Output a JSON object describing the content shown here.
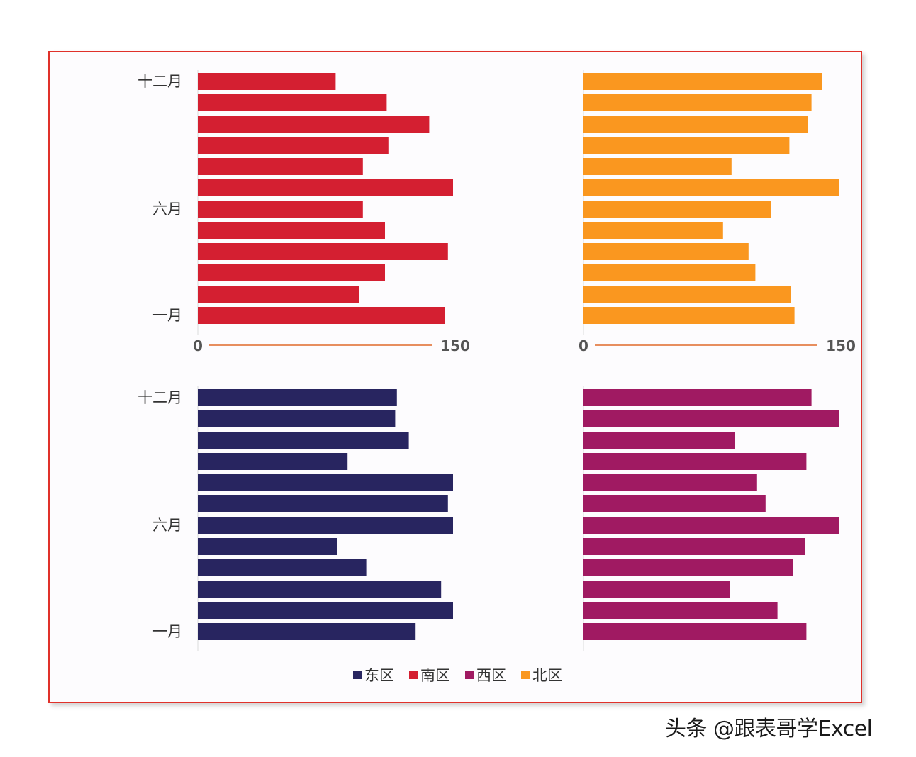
{
  "chart_data": {
    "type": "bar",
    "orientation": "horizontal",
    "layout": "2x2 small multiples",
    "categories": [
      "一月",
      "",
      "",
      "",
      "",
      "六月",
      "",
      "",
      "",
      "",
      "",
      "十二月"
    ],
    "xlim": [
      0,
      150
    ],
    "x_tick_labels": [
      "0",
      "150"
    ],
    "legend": [
      "东区",
      "南区",
      "西区",
      "北区"
    ],
    "legend_position": "bottom",
    "series": [
      {
        "name": "南区",
        "color": "#d41f31",
        "panel": "top-left",
        "values": [
          145,
          95,
          110,
          147,
          110,
          97,
          151,
          97,
          112,
          136,
          111,
          81
        ]
      },
      {
        "name": "北区",
        "color": "#fa971f",
        "panel": "top-right",
        "values": [
          124,
          122,
          101,
          97,
          82,
          110,
          151,
          87,
          121,
          132,
          134,
          140
        ]
      },
      {
        "name": "东区",
        "color": "#282560",
        "panel": "bottom-left",
        "values": [
          128,
          150,
          143,
          99,
          82,
          150,
          147,
          151,
          88,
          124,
          116,
          117
        ]
      },
      {
        "name": "西区",
        "color": "#a01a62",
        "panel": "bottom-right",
        "values": [
          131,
          114,
          86,
          123,
          130,
          151,
          107,
          102,
          131,
          89,
          151,
          134
        ]
      }
    ]
  },
  "watermark": "头条 @跟表哥学Excel"
}
